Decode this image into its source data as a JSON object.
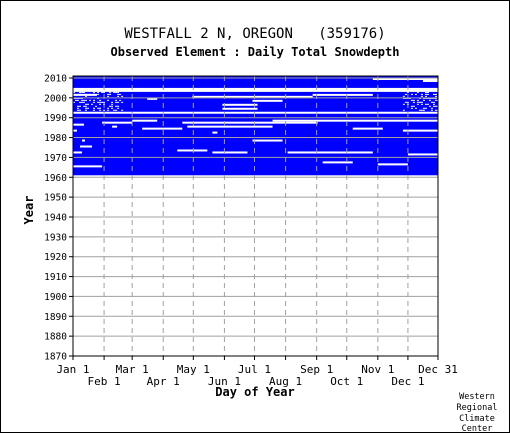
{
  "chart_data": {
    "type": "heatmap",
    "title": "WESTFALL 2 N, OREGON   (359176)",
    "subtitle": "Observed Element : Daily Total Snowdepth",
    "xlabel": "Day of Year",
    "ylabel": "Year",
    "xlim": [
      1,
      365
    ],
    "ylim": [
      1870,
      2011
    ],
    "y_ticks": [
      1870,
      1880,
      1890,
      1900,
      1910,
      1920,
      1930,
      1940,
      1950,
      1960,
      1970,
      1980,
      1990,
      2000,
      2010
    ],
    "x_ticks_upper": [
      {
        "label": "Jan 1",
        "day": 1
      },
      {
        "label": "Mar 1",
        "day": 60
      },
      {
        "label": "May 1",
        "day": 121
      },
      {
        "label": "Jul 1",
        "day": 182
      },
      {
        "label": "Sep 1",
        "day": 244
      },
      {
        "label": "Nov 1",
        "day": 305
      },
      {
        "label": "Dec 31",
        "day": 365
      }
    ],
    "x_ticks_lower": [
      {
        "label": "Feb 1",
        "day": 32
      },
      {
        "label": "Apr 1",
        "day": 91
      },
      {
        "label": "Jun 1",
        "day": 152
      },
      {
        "label": "Aug 1",
        "day": 213
      },
      {
        "label": "Oct 1",
        "day": 274
      },
      {
        "label": "Dec 1",
        "day": 335
      }
    ],
    "grid": true,
    "data_color": "#0000ff",
    "data_coverage_years": [
      [
        1961,
        1992
      ],
      [
        1993,
        2003
      ],
      [
        2005,
        2011
      ]
    ],
    "missing_segments": [
      {
        "year": 1965,
        "start_day": 1,
        "end_day": 30
      },
      {
        "year": 1972,
        "start_day": 1,
        "end_day": 10
      },
      {
        "year": 1975,
        "start_day": 8,
        "end_day": 20
      },
      {
        "year": 1978,
        "start_day": 10,
        "end_day": 13
      },
      {
        "year": 1986,
        "start_day": 1,
        "end_day": 12
      },
      {
        "year": 1983,
        "start_day": 1,
        "end_day": 5
      },
      {
        "year": 1982,
        "start_day": 140,
        "end_day": 145
      },
      {
        "year": 1987,
        "start_day": 30,
        "end_day": 60
      },
      {
        "year": 1985,
        "start_day": 40,
        "end_day": 45
      },
      {
        "year": 1988,
        "start_day": 60,
        "end_day": 85
      },
      {
        "year": 1984,
        "start_day": 70,
        "end_day": 110
      },
      {
        "year": 1987,
        "start_day": 110,
        "end_day": 245
      },
      {
        "year": 1988,
        "start_day": 200,
        "end_day": 365
      },
      {
        "year": 1985,
        "start_day": 115,
        "end_day": 200
      },
      {
        "year": 1978,
        "start_day": 180,
        "end_day": 210
      },
      {
        "year": 1973,
        "start_day": 105,
        "end_day": 135
      },
      {
        "year": 1972,
        "start_day": 140,
        "end_day": 175
      },
      {
        "year": 1972,
        "start_day": 215,
        "end_day": 300
      },
      {
        "year": 1967,
        "start_day": 250,
        "end_day": 280
      },
      {
        "year": 1966,
        "start_day": 305,
        "end_day": 335
      },
      {
        "year": 1971,
        "start_day": 335,
        "end_day": 365
      },
      {
        "year": 1984,
        "start_day": 280,
        "end_day": 310
      },
      {
        "year": 1983,
        "start_day": 330,
        "end_day": 365
      },
      {
        "year": 1998,
        "start_day": 180,
        "end_day": 210
      },
      {
        "year": 1996,
        "start_day": 150,
        "end_day": 185
      },
      {
        "year": 1994,
        "start_day": 150,
        "end_day": 185
      },
      {
        "year": 2000,
        "start_day": 120,
        "end_day": 240
      },
      {
        "year": 2001,
        "start_day": 240,
        "end_day": 300
      },
      {
        "year": 2001,
        "start_day": 1,
        "end_day": 25
      },
      {
        "year": 1999,
        "start_day": 75,
        "end_day": 85
      },
      {
        "year": 2009,
        "start_day": 300,
        "end_day": 365
      },
      {
        "year": 2008,
        "start_day": 350,
        "end_day": 365
      }
    ],
    "speckle_regions": [
      {
        "years": [
          1993,
          2003
        ],
        "days": [
          1,
          50
        ]
      },
      {
        "years": [
          1993,
          2003
        ],
        "days": [
          330,
          365
        ]
      }
    ]
  },
  "credit": [
    "Western",
    "Regional",
    "Climate",
    "Center"
  ],
  "colors": {
    "background": "#ffffff",
    "data": "#0000ff",
    "grid": "#a0a0a0",
    "axis": "#000000"
  }
}
